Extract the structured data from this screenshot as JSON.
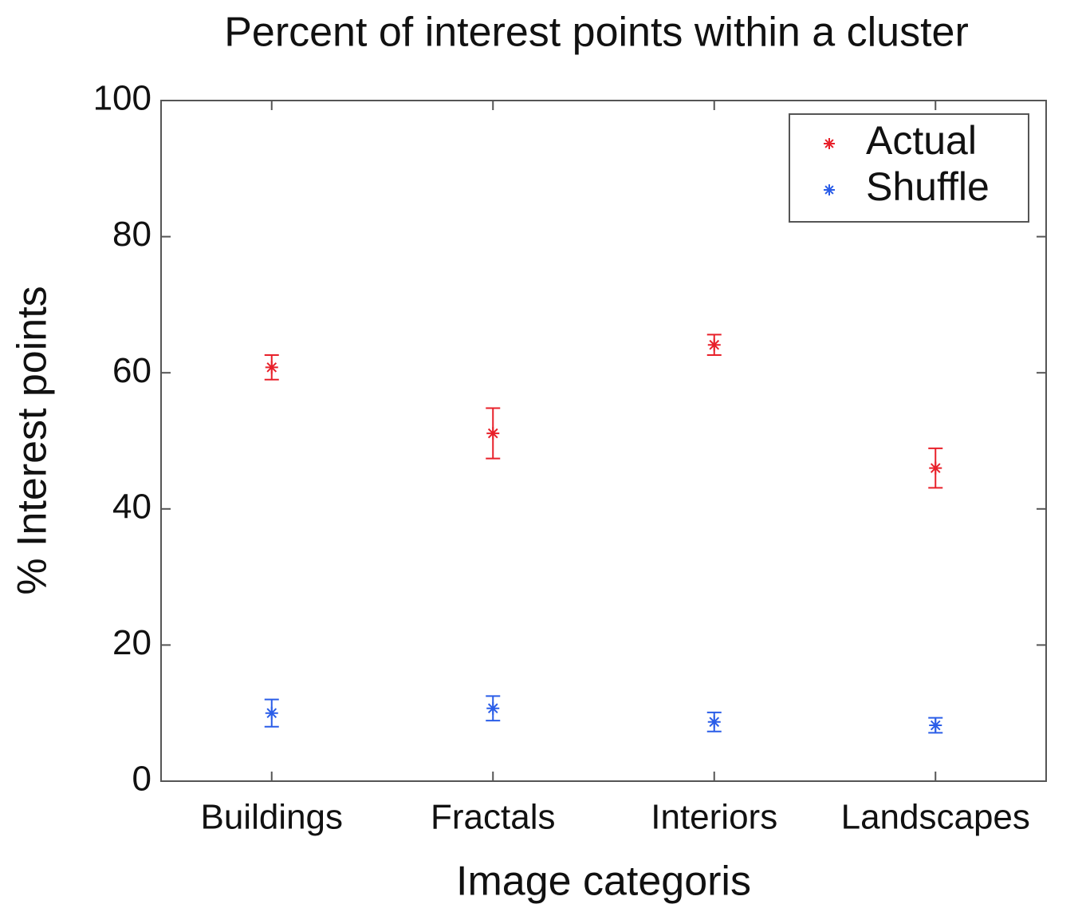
{
  "chart_data": {
    "type": "errorbar",
    "title": "Percent of interest points within a cluster",
    "xlabel": "Image categoris",
    "ylabel": "% Interest points",
    "categories": [
      "Buildings",
      "Fractals",
      "Interiors",
      "Landscapes"
    ],
    "series": [
      {
        "name": "Actual",
        "color": "#e8202a",
        "values": [
          60.8,
          51.1,
          64.1,
          46.0
        ],
        "errors": [
          1.8,
          3.7,
          1.5,
          2.9
        ]
      },
      {
        "name": "Shuffle",
        "color": "#2a5de8",
        "values": [
          10.0,
          10.7,
          8.7,
          8.2
        ],
        "errors": [
          2.0,
          1.8,
          1.4,
          1.1
        ]
      }
    ],
    "ylim": [
      0,
      100
    ],
    "yticks": [
      0,
      20,
      40,
      60,
      80,
      100
    ],
    "legend": "upper right"
  }
}
